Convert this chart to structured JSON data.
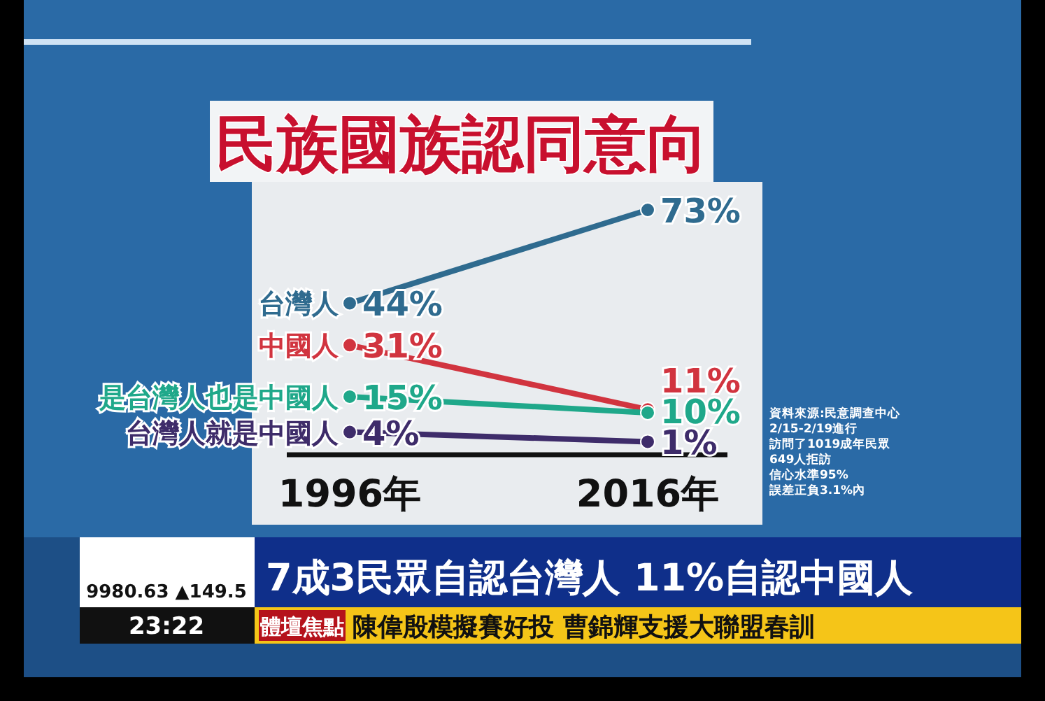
{
  "chart_data": {
    "type": "line",
    "title": "民族國族認同意向",
    "categories": [
      "1996年",
      "2016年"
    ],
    "marker": "circle",
    "line_style": "solid",
    "grid": false,
    "legend": false,
    "series": [
      {
        "name": "台灣人",
        "color": "#2f6b8f",
        "values": [
          44,
          73
        ],
        "value_labels": [
          "44%",
          "73%"
        ]
      },
      {
        "name": "中國人",
        "color": "#d1343f",
        "values": [
          31,
          11
        ],
        "value_labels": [
          "31%",
          "11%"
        ]
      },
      {
        "name": "是台灣人也是中國人",
        "color": "#1fa88a",
        "values": [
          15,
          10
        ],
        "value_labels": [
          "15%",
          "10%"
        ]
      },
      {
        "name": "台灣人就是中國人",
        "color": "#3e2c6a",
        "values": [
          4,
          1
        ],
        "value_labels": [
          "4%",
          "1%"
        ]
      }
    ],
    "annotations": [
      "資料來源:民意調查中心",
      "2/15-2/19進行",
      "訪問了1019成年民眾",
      "649人拒訪",
      "信心水準95%",
      "誤差正負3.1%內",
      "7成3民眾自認台灣人 11%自認中國人",
      "9980.63 ▲149.5",
      "23:22",
      "體壇焦點",
      "陳偉殷模擬賽好投 曹錦輝支援大聯盟春訓"
    ]
  }
}
